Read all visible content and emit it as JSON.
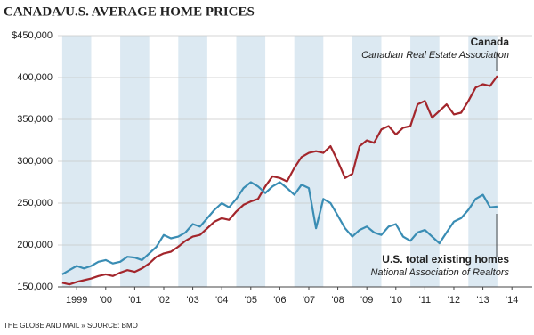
{
  "chart_data": {
    "type": "line",
    "title": "CANADA/U.S. AVERAGE HOME PRICES",
    "x": [
      1999,
      1999.25,
      1999.5,
      1999.75,
      2000,
      2000.25,
      2000.5,
      2000.75,
      2001,
      2001.25,
      2001.5,
      2001.75,
      2002,
      2002.25,
      2002.5,
      2002.75,
      2003,
      2003.25,
      2003.5,
      2003.75,
      2004,
      2004.25,
      2004.5,
      2004.75,
      2005,
      2005.25,
      2005.5,
      2005.75,
      2006,
      2006.25,
      2006.5,
      2006.75,
      2007,
      2007.25,
      2007.5,
      2007.75,
      2008,
      2008.25,
      2008.5,
      2008.75,
      2009,
      2009.25,
      2009.5,
      2009.75,
      2010,
      2010.25,
      2010.5,
      2010.75,
      2011,
      2011.25,
      2011.5,
      2011.75,
      2012,
      2012.25,
      2012.5,
      2012.75,
      2013,
      2013.25,
      2013.5,
      2013.75,
      2014
    ],
    "series": [
      {
        "name": "Canada",
        "source": "Canadian Real Estate Association",
        "color": "#a3262c",
        "values": [
          155000,
          153000,
          156000,
          158000,
          160000,
          163000,
          165000,
          163000,
          167000,
          170000,
          168000,
          172000,
          178000,
          186000,
          190000,
          192000,
          198000,
          205000,
          210000,
          212000,
          220000,
          228000,
          232000,
          230000,
          240000,
          248000,
          252000,
          255000,
          270000,
          282000,
          280000,
          276000,
          292000,
          305000,
          310000,
          312000,
          310000,
          318000,
          300000,
          280000,
          285000,
          318000,
          325000,
          322000,
          338000,
          342000,
          332000,
          340000,
          342000,
          368000,
          372000,
          352000,
          360000,
          368000,
          356000,
          358000,
          372000,
          388000,
          392000,
          390000,
          402000
        ]
      },
      {
        "name": "U.S. total existing homes",
        "source": "National Association of Realtors",
        "color": "#3a8db4",
        "values": [
          165000,
          170000,
          175000,
          172000,
          175000,
          180000,
          182000,
          178000,
          180000,
          186000,
          185000,
          182000,
          190000,
          198000,
          212000,
          208000,
          210000,
          215000,
          225000,
          222000,
          232000,
          242000,
          250000,
          245000,
          255000,
          268000,
          275000,
          270000,
          262000,
          270000,
          275000,
          268000,
          260000,
          272000,
          268000,
          220000,
          255000,
          250000,
          235000,
          220000,
          210000,
          218000,
          222000,
          215000,
          212000,
          222000,
          225000,
          210000,
          205000,
          215000,
          218000,
          210000,
          202000,
          215000,
          228000,
          232000,
          242000,
          255000,
          260000,
          245000,
          246000
        ]
      }
    ],
    "ylim": [
      150000,
      450000
    ],
    "yticks": [
      {
        "value": 150000,
        "label": "150,000"
      },
      {
        "value": 200000,
        "label": "200,000"
      },
      {
        "value": 250000,
        "label": "250,000"
      },
      {
        "value": 300000,
        "label": "300,000"
      },
      {
        "value": 350000,
        "label": "350,000"
      },
      {
        "value": 400000,
        "label": "400,000"
      },
      {
        "value": 450000,
        "label": "$450,000"
      }
    ],
    "xlim": [
      1998.85,
      2015.2
    ],
    "xticks": [
      {
        "value": 1999.5,
        "label": "1999"
      },
      {
        "value": 2000.5,
        "label": "'00"
      },
      {
        "value": 2001.5,
        "label": "'01"
      },
      {
        "value": 2002.5,
        "label": "'02"
      },
      {
        "value": 2003.5,
        "label": "'03"
      },
      {
        "value": 2004.5,
        "label": "'04"
      },
      {
        "value": 2005.5,
        "label": "'05"
      },
      {
        "value": 2006.5,
        "label": "'06"
      },
      {
        "value": 2007.5,
        "label": "'07"
      },
      {
        "value": 2008.5,
        "label": "'08"
      },
      {
        "value": 2009.5,
        "label": "'09"
      },
      {
        "value": 2010.5,
        "label": "'10"
      },
      {
        "value": 2011.5,
        "label": "'11"
      },
      {
        "value": 2012.5,
        "label": "'12"
      },
      {
        "value": 2013.5,
        "label": "'13"
      },
      {
        "value": 2014.5,
        "label": "'14"
      }
    ],
    "shaded_years": [
      1999,
      2001,
      2003,
      2005,
      2007,
      2009,
      2011,
      2013
    ],
    "band_color": "#dce9f2",
    "grid": true,
    "footer": "THE GLOBE AND MAIL » SOURCE: BMO"
  }
}
